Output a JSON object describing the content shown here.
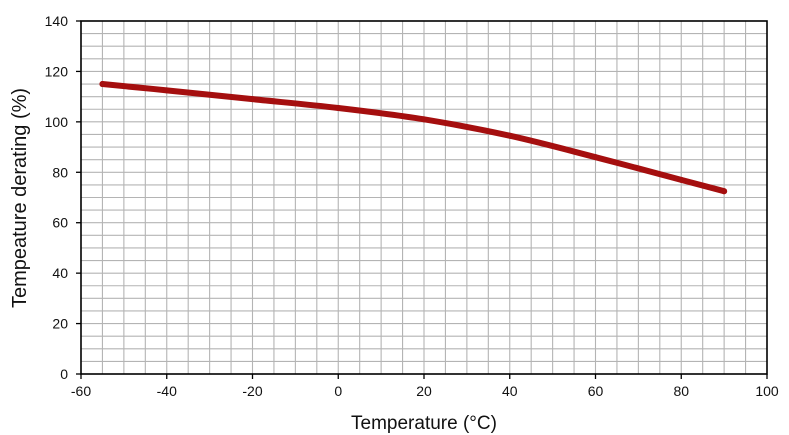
{
  "chart_data": {
    "type": "line",
    "title": "",
    "xlabel": "Temperature (°C)",
    "ylabel": "Tempeature derating (%)",
    "xlim": [
      -60,
      100
    ],
    "ylim": [
      0,
      140
    ],
    "x_ticks": [
      -60,
      -40,
      -20,
      0,
      20,
      40,
      60,
      80,
      100
    ],
    "y_ticks": [
      0,
      20,
      40,
      60,
      80,
      100,
      120,
      140
    ],
    "x_tick_labels": [
      "-60",
      "-40",
      "-20",
      "0",
      "20",
      "40",
      "60",
      "80",
      "100"
    ],
    "y_tick_labels": [
      "0",
      "20",
      "40",
      "60",
      "80",
      "100",
      "120",
      "140"
    ],
    "grid": true,
    "grid_minor_x_step": 5,
    "grid_minor_y_step": 5,
    "series": [
      {
        "color": "#a50f0f",
        "x": [
          -55,
          -40,
          -20,
          0,
          20,
          40,
          60,
          80,
          90
        ],
        "y": [
          115,
          112.5,
          109,
          105.5,
          101,
          94.5,
          86,
          77,
          72.5
        ]
      }
    ]
  },
  "colors": {
    "grid": "#b4b4b4",
    "axis": "#000000",
    "line": "#a50f0f"
  }
}
